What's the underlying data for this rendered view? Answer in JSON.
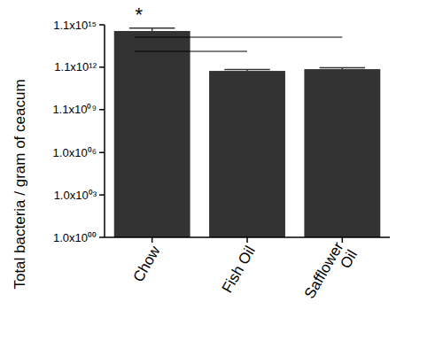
{
  "chart_data": {
    "type": "bar",
    "y_label": "Total bacteria / gram of ceacum",
    "categories": [
      "Chow",
      "Fish Oil",
      "Safflower\nOil"
    ],
    "values": [
      400000000000000,
      600000000000,
      800000000000
    ],
    "errors": [
      230000000000000,
      150000000000,
      200000000000
    ],
    "color": "#333333",
    "log": "y",
    "grid": false,
    "ylim": [
      1,
      1100000000000000
    ],
    "yticks": [
      {
        "value": 1,
        "label": "1.0x10⁰⁰"
      },
      {
        "value": 1000,
        "label": "1.0x10⁰³"
      },
      {
        "value": 1000000,
        "label": "1.0x10⁰⁶"
      },
      {
        "value": 1100000000,
        "label": "1.1x10⁰⁹"
      },
      {
        "value": 1100000000000,
        "label": "1.1x10¹²"
      },
      {
        "value": 1100000000000000,
        "label": "1.1x10¹⁵"
      }
    ],
    "annotation": "*",
    "comparisons": [
      [
        "Chow",
        "Fish Oil"
      ],
      [
        "Chow",
        "Safflower\nOil"
      ]
    ]
  }
}
